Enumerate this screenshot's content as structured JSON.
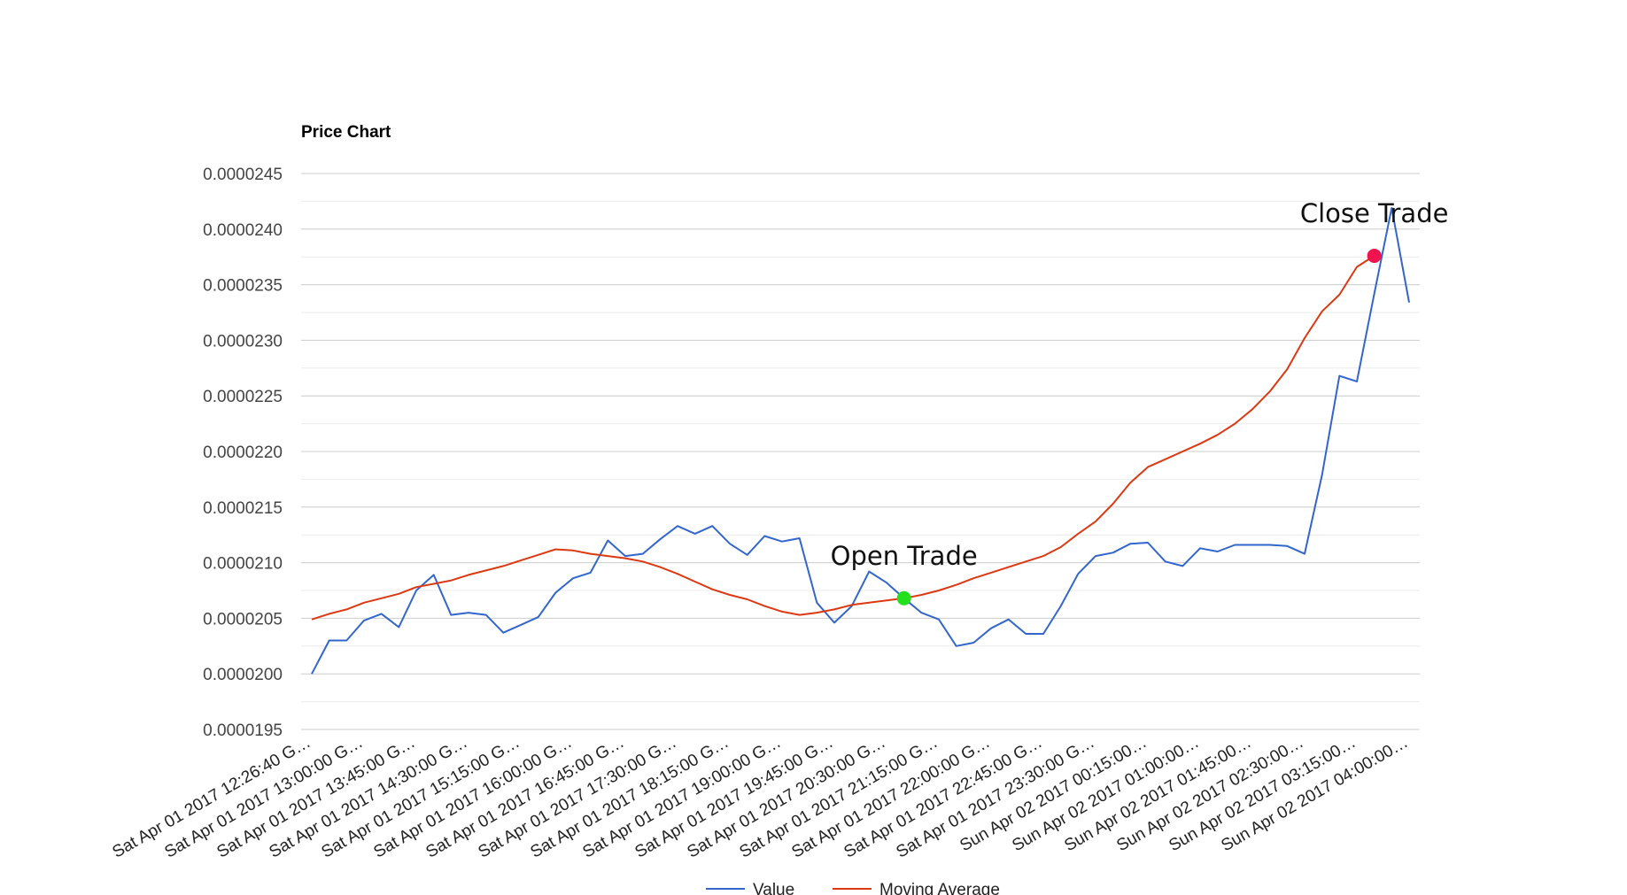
{
  "chart_data": {
    "type": "line",
    "title": "Price Chart",
    "ylim": [
      1.95e-05,
      2.45e-05
    ],
    "y_ticks": [
      "0.0000195",
      "0.0000200",
      "0.0000205",
      "0.0000210",
      "0.0000215",
      "0.0000220",
      "0.0000225",
      "0.0000230",
      "0.0000235",
      "0.0000240",
      "0.0000245"
    ],
    "x_tick_labels": [
      "Sat Apr 01 2017 12:26:40 G…",
      "Sat Apr 01 2017 13:00:00 G…",
      "Sat Apr 01 2017 13:45:00 G…",
      "Sat Apr 01 2017 14:30:00 G…",
      "Sat Apr 01 2017 15:15:00 G…",
      "Sat Apr 01 2017 16:00:00 G…",
      "Sat Apr 01 2017 16:45:00 G…",
      "Sat Apr 01 2017 17:30:00 G…",
      "Sat Apr 01 2017 18:15:00 G…",
      "Sat Apr 01 2017 19:00:00 G…",
      "Sat Apr 01 2017 19:45:00 G…",
      "Sat Apr 01 2017 20:30:00 G…",
      "Sat Apr 01 2017 21:15:00 G…",
      "Sat Apr 01 2017 22:00:00 G…",
      "Sat Apr 01 2017 22:45:00 G…",
      "Sat Apr 01 2017 23:30:00 G…",
      "Sun Apr 02 2017 00:15:00…",
      "Sun Apr 02 2017 01:00:00…",
      "Sun Apr 02 2017 01:45:00…",
      "Sun Apr 02 2017 02:30:00…",
      "Sun Apr 02 2017 03:15:00…",
      "Sun Apr 02 2017 04:00:00…"
    ],
    "series": [
      {
        "name": "Value",
        "color": "#3366cc",
        "values": [
          2e-05,
          2.03e-05,
          2.03e-05,
          2.048e-05,
          2.054e-05,
          2.042e-05,
          2.075e-05,
          2.089e-05,
          2.053e-05,
          2.055e-05,
          2.053e-05,
          2.037e-05,
          2.044e-05,
          2.051e-05,
          2.073e-05,
          2.086e-05,
          2.091e-05,
          2.12e-05,
          2.106e-05,
          2.108e-05,
          2.121e-05,
          2.133e-05,
          2.126e-05,
          2.133e-05,
          2.117e-05,
          2.107e-05,
          2.124e-05,
          2.119e-05,
          2.122e-05,
          2.064e-05,
          2.046e-05,
          2.061e-05,
          2.092e-05,
          2.082e-05,
          2.068e-05,
          2.055e-05,
          2.049e-05,
          2.025e-05,
          2.028e-05,
          2.041e-05,
          2.049e-05,
          2.036e-05,
          2.036e-05,
          2.061e-05,
          2.09e-05,
          2.106e-05,
          2.109e-05,
          2.117e-05,
          2.118e-05,
          2.101e-05,
          2.097e-05,
          2.113e-05,
          2.11e-05,
          2.116e-05,
          2.116e-05,
          2.116e-05,
          2.115e-05,
          2.108e-05,
          2.179e-05,
          2.268e-05,
          2.263e-05,
          2.342e-05,
          2.419e-05,
          2.334e-05
        ]
      },
      {
        "name": "Moving Average",
        "color": "#dc3912",
        "values": [
          2.049e-05,
          2.054e-05,
          2.058e-05,
          2.064e-05,
          2.068e-05,
          2.072e-05,
          2.078e-05,
          2.081e-05,
          2.084e-05,
          2.089e-05,
          2.093e-05,
          2.097e-05,
          2.102e-05,
          2.107e-05,
          2.112e-05,
          2.111e-05,
          2.108e-05,
          2.106e-05,
          2.104e-05,
          2.101e-05,
          2.096e-05,
          2.09e-05,
          2.083e-05,
          2.076e-05,
          2.071e-05,
          2.067e-05,
          2.061e-05,
          2.056e-05,
          2.053e-05,
          2.055e-05,
          2.058e-05,
          2.062e-05,
          2.064e-05,
          2.066e-05,
          2.068e-05,
          2.071e-05,
          2.075e-05,
          2.08e-05,
          2.086e-05,
          2.091e-05,
          2.096e-05,
          2.101e-05,
          2.106e-05,
          2.114e-05,
          2.126e-05,
          2.137e-05,
          2.153e-05,
          2.172e-05,
          2.186e-05,
          2.193e-05,
          2.2e-05,
          2.207e-05,
          2.215e-05,
          2.225e-05,
          2.238e-05,
          2.254e-05,
          2.274e-05,
          2.302e-05,
          2.326e-05,
          2.341e-05,
          2.366e-05,
          2.376e-05
        ]
      }
    ],
    "annotations": [
      {
        "text": "Open Trade",
        "series": "Moving Average",
        "index": 34,
        "marker_color": "#22e01c"
      },
      {
        "text": "Close Trade",
        "series": "Moving Average",
        "index": 61,
        "marker_color": "#f0144e"
      }
    ],
    "legend": {
      "position": "bottom",
      "items": [
        "Value",
        "Moving Average"
      ]
    },
    "grid": true
  }
}
